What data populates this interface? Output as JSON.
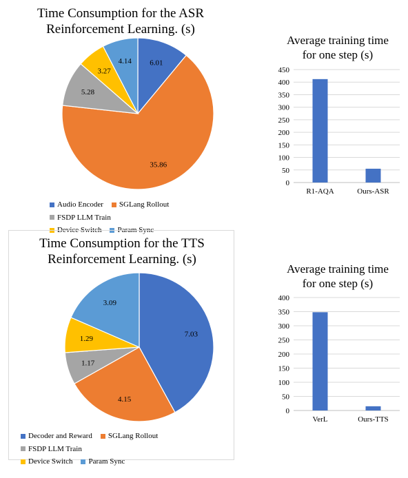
{
  "chart_data": [
    {
      "type": "pie",
      "title": "Time Consumption for the ASR Reinforcement Learning. (s)",
      "title_lines": [
        "Time Consumption for the ASR",
        "Reinforcement Learning. (s)"
      ],
      "categories": [
        "Audio Encoder",
        "SGLang Rollout",
        "FSDP LLM Train",
        "Device Switch",
        "Param Sync"
      ],
      "values": [
        6.01,
        35.86,
        5.28,
        3.27,
        4.14
      ],
      "labels": [
        "6.01",
        "35.86",
        "5.28",
        "3.27",
        "4.14"
      ],
      "colors": [
        "#4472C4",
        "#ED7D31",
        "#A5A5A5",
        "#FFC000",
        "#5B9BD5"
      ],
      "legend_placement": "bottom"
    },
    {
      "type": "bar",
      "title": "Average training time for one step (s)",
      "title_lines": [
        "Average training time",
        "for one step (s)"
      ],
      "categories": [
        "R1-AQA",
        "Ours-ASR"
      ],
      "values": [
        412,
        55
      ],
      "ylim": [
        0,
        450
      ],
      "yticks": [
        "0",
        "50",
        "100",
        "150",
        "200",
        "250",
        "300",
        "350",
        "400",
        "450"
      ],
      "bar_color": "#4472C4",
      "grid": true
    },
    {
      "type": "pie",
      "title": "Time Consumption for the TTS Reinforcement Learning. (s)",
      "title_lines": [
        "Time Consumption for the TTS",
        "Reinforcement Learning. (s)"
      ],
      "categories": [
        "Decoder and Reward",
        "SGLang Rollout",
        "FSDP LLM Train",
        "Device Switch",
        "Param Sync"
      ],
      "values": [
        7.03,
        4.15,
        1.17,
        1.29,
        3.09
      ],
      "labels": [
        "7.03",
        "4.15",
        "1.17",
        "1.29",
        "3.09"
      ],
      "colors": [
        "#4472C4",
        "#ED7D31",
        "#A5A5A5",
        "#FFC000",
        "#5B9BD5"
      ],
      "legend_placement": "bottom"
    },
    {
      "type": "bar",
      "title": "Average training time for one step (s)",
      "title_lines": [
        "Average training time",
        "for one step (s)"
      ],
      "categories": [
        "VerL",
        "Ours-TTS"
      ],
      "values": [
        348,
        15
      ],
      "ylim": [
        0,
        400
      ],
      "yticks": [
        "0",
        "50",
        "100",
        "150",
        "200",
        "250",
        "300",
        "350",
        "400"
      ],
      "bar_color": "#4472C4",
      "grid": true
    }
  ]
}
